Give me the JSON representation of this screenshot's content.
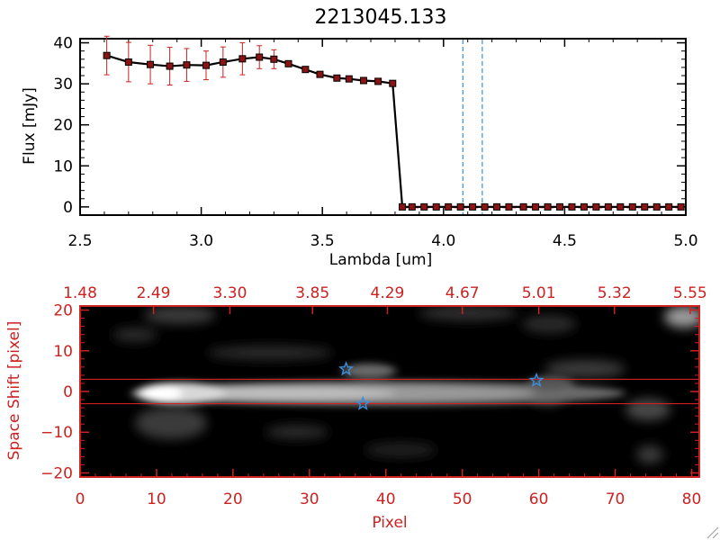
{
  "colors": {
    "red": "#cc2222",
    "dark_red": "#b31d1d",
    "black": "#000000",
    "blue_dash": "#3a8fe0",
    "star_blue": "#3a8fe0",
    "marker_fill": "#8a1414"
  },
  "chart_data": [
    {
      "type": "line",
      "title": "2213045.133",
      "xlabel": "Lambda [um]",
      "ylabel": "Flux [mJy]",
      "xlim": [
        2.5,
        5.0
      ],
      "ylim": [
        -2,
        41
      ],
      "x_ticks": [
        2.5,
        3.0,
        3.5,
        4.0,
        4.5,
        5.0
      ],
      "x_tick_labels": [
        "2.5",
        "3.0",
        "3.5",
        "4.0",
        "4.5",
        "5.0"
      ],
      "y_ticks": [
        0,
        10,
        20,
        30,
        40
      ],
      "y_tick_labels": [
        "0",
        "10",
        "20",
        "30",
        "40"
      ],
      "grid": false,
      "vlines": [
        4.08,
        4.16
      ],
      "series": [
        {
          "x": [
            2.61,
            2.7,
            2.79,
            2.87,
            2.94,
            3.02,
            3.09,
            3.17,
            3.24,
            3.3,
            3.36,
            3.43,
            3.49,
            3.56,
            3.61,
            3.67,
            3.73,
            3.79,
            3.83,
            3.87,
            3.92,
            3.97,
            4.02,
            4.07,
            4.12,
            4.17,
            4.22,
            4.27,
            4.33,
            4.38,
            4.43,
            4.48,
            4.53,
            4.58,
            4.63,
            4.68,
            4.73,
            4.78,
            4.83,
            4.88,
            4.93,
            4.98
          ],
          "y": [
            36.9,
            35.3,
            34.7,
            34.3,
            34.6,
            34.5,
            35.3,
            36.1,
            36.5,
            36.0,
            34.9,
            33.5,
            32.3,
            31.4,
            31.2,
            30.8,
            30.6,
            30.1,
            0,
            0,
            0,
            0,
            0,
            0,
            0,
            0,
            0,
            0,
            0,
            0,
            0,
            0,
            0,
            0,
            0,
            0,
            0,
            0,
            0,
            0,
            0,
            0
          ],
          "yerr": [
            4.7,
            4.8,
            4.7,
            4.6,
            4.0,
            3.5,
            3.7,
            3.9,
            2.8,
            2.3,
            0.6,
            0.5,
            0.5,
            0.4,
            0.4,
            0.4,
            0.4,
            0.4,
            0,
            0,
            0,
            0,
            0,
            0,
            0,
            0,
            0,
            0,
            0,
            0,
            0,
            0,
            0,
            0,
            0,
            0,
            0,
            0,
            0,
            0,
            0,
            0
          ]
        }
      ]
    },
    {
      "type": "heatmap",
      "xlabel": "Pixel",
      "ylabel": "Space Shift [pixel]",
      "xlim": [
        0,
        81
      ],
      "ylim": [
        -21,
        21
      ],
      "x_ticks": [
        0,
        10,
        20,
        30,
        40,
        50,
        60,
        70,
        80
      ],
      "x_tick_labels": [
        "0",
        "10",
        "20",
        "30",
        "40",
        "50",
        "60",
        "70",
        "80"
      ],
      "y_ticks": [
        -20,
        -10,
        0,
        10,
        20
      ],
      "y_tick_labels": [
        "−20",
        "−10",
        "0",
        "10",
        "20"
      ],
      "top_x_ticks": [
        0,
        9.6,
        19.6,
        30.4,
        40.2,
        50.0,
        60.0,
        69.9,
        79.8
      ],
      "top_x_tick_labels": [
        "1.48",
        "2.49",
        "3.30",
        "3.85",
        "4.29",
        "4.67",
        "5.01",
        "5.32",
        "5.55"
      ],
      "hlines": [
        3,
        -3
      ],
      "stars": [
        {
          "x": 34.8,
          "y": 5.5
        },
        {
          "x": 37.0,
          "y": -3.0
        },
        {
          "x": 59.7,
          "y": 2.7
        }
      ]
    }
  ]
}
